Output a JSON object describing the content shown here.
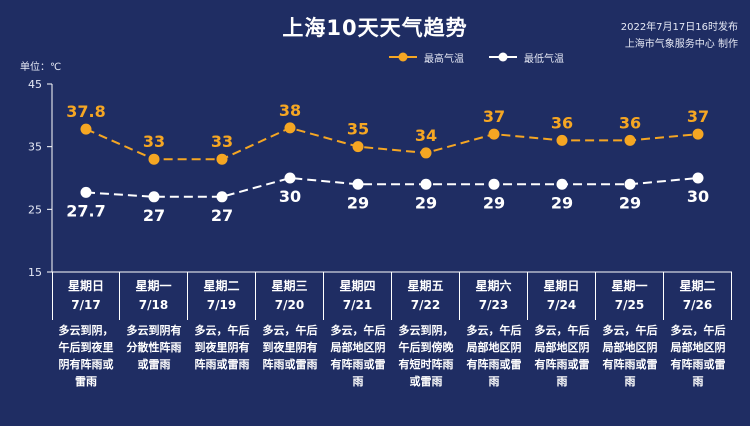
{
  "header": {
    "title": "上海10天天气趋势",
    "publish_time": "2022年7月17日16时发布",
    "producer": "上海市气象服务中心 制作"
  },
  "colors": {
    "background": "#1f2d63",
    "high_series": "#f5a623",
    "low_series": "#ffffff",
    "axis": "#ffffff"
  },
  "chart_data": {
    "type": "line",
    "ylabel": "单位：℃",
    "ylim": [
      15,
      45
    ],
    "yticks": [
      45,
      35,
      25,
      15
    ],
    "grid": false,
    "legend_position": "top-right",
    "categories": [
      {
        "weekday": "星期日",
        "date": "7/17"
      },
      {
        "weekday": "星期一",
        "date": "7/18"
      },
      {
        "weekday": "星期二",
        "date": "7/19"
      },
      {
        "weekday": "星期三",
        "date": "7/20"
      },
      {
        "weekday": "星期四",
        "date": "7/21"
      },
      {
        "weekday": "星期五",
        "date": "7/22"
      },
      {
        "weekday": "星期六",
        "date": "7/23"
      },
      {
        "weekday": "星期日",
        "date": "7/24"
      },
      {
        "weekday": "星期一",
        "date": "7/25"
      },
      {
        "weekday": "星期二",
        "date": "7/26"
      }
    ],
    "series": [
      {
        "name": "最高气温",
        "values": [
          37.8,
          33,
          33,
          38,
          35,
          34,
          37,
          36,
          36,
          37
        ],
        "labels": [
          "37.8",
          "33",
          "33",
          "38",
          "35",
          "34",
          "37",
          "36",
          "36",
          "37"
        ]
      },
      {
        "name": "最低气温",
        "values": [
          27.7,
          27,
          27,
          30,
          29,
          29,
          29,
          29,
          29,
          30
        ],
        "labels": [
          "27.7",
          "27",
          "27",
          "30",
          "29",
          "29",
          "29",
          "29",
          "29",
          "30"
        ]
      }
    ],
    "descriptions": [
      "多云到阴，午后到夜里阴有阵雨或雷雨",
      "多云到阴有分散性阵雨或雷雨",
      "多云，午后到夜里阴有阵雨或雷雨",
      "多云，午后到夜里阴有阵雨或雷雨",
      "多云，午后局部地区阴有阵雨或雷雨",
      "多云到阴，午后到傍晚有短时阵雨或雷雨",
      "多云，午后局部地区阴有阵雨或雷雨",
      "多云，午后局部地区阴有阵雨或雷雨",
      "多云，午后局部地区阴有阵雨或雷雨",
      "多云，午后局部地区阴有阵雨或雷雨"
    ]
  }
}
